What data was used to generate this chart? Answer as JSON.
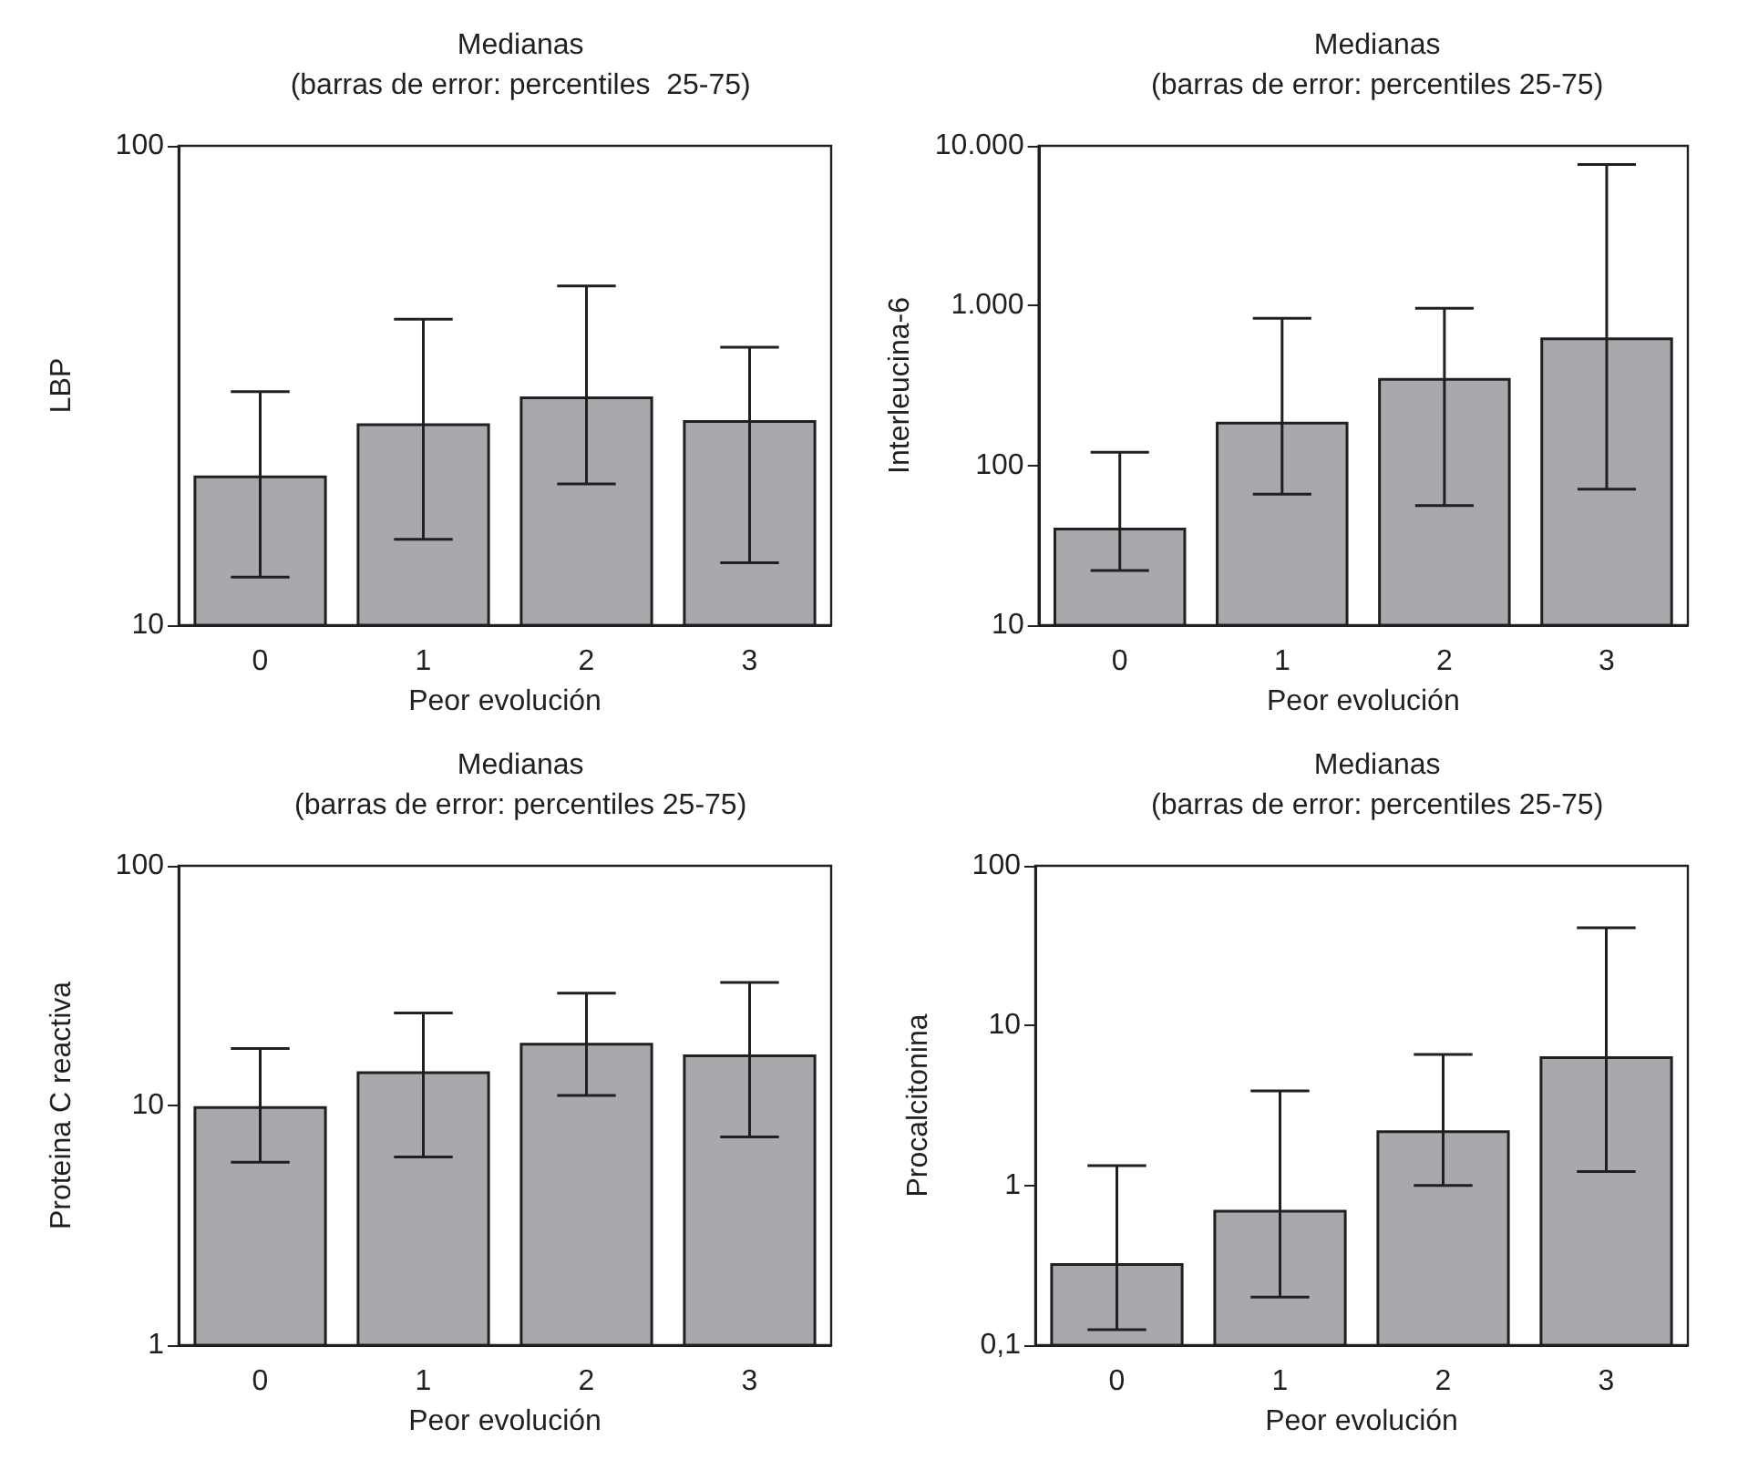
{
  "chart_data": [
    {
      "type": "bar",
      "title": "Medianas",
      "subtitle": "(barras de error: percentiles  25-75)",
      "xlabel": "Peor evolución",
      "ylabel": "LBP",
      "categories": [
        "0",
        "1",
        "2",
        "3"
      ],
      "log": "y",
      "ylim": [
        10,
        100
      ],
      "yticks": [
        10,
        100
      ],
      "color": "#a7a9ac",
      "values": [
        20.4,
        26.2,
        29.8,
        26.6
      ],
      "errors": [
        [
          12.6,
          30.7
        ],
        [
          15.1,
          43.5
        ],
        [
          19.7,
          51
        ],
        [
          13.5,
          38
        ]
      ]
    },
    {
      "type": "bar",
      "title": "Medianas",
      "subtitle": "(barras de error: percentiles 25-75)",
      "xlabel": "Peor evolución",
      "ylabel": "Interleucina-6",
      "categories": [
        "0",
        "1",
        "2",
        "3"
      ],
      "log": "y",
      "ylim": [
        10,
        10000
      ],
      "yticks": [
        10,
        100,
        {
          "value": 1000,
          "label": "1.000"
        },
        {
          "value": 10000,
          "label": "10.000"
        }
      ],
      "color": "#a7a9ac",
      "values": [
        40,
        184,
        346,
        620
      ],
      "errors": [
        [
          22,
          121
        ],
        [
          66,
          834
        ],
        [
          56,
          962
        ],
        [
          71,
          7650
        ]
      ]
    },
    {
      "type": "bar",
      "title": "Medianas",
      "subtitle": "(barras de error: percentiles 25-75)",
      "xlabel": "Peor evolución",
      "ylabel": "Proteina C reactiva",
      "categories": [
        "0",
        "1",
        "2",
        "3"
      ],
      "log": "y",
      "ylim": [
        1,
        100
      ],
      "yticks": [
        1,
        10,
        100
      ],
      "color": "#a7a9ac",
      "values": [
        9.8,
        13.7,
        18,
        16.1
      ],
      "errors": [
        [
          5.8,
          17.3
        ],
        [
          6.1,
          24.3
        ],
        [
          11,
          29.4
        ],
        [
          7.4,
          32.6
        ]
      ]
    },
    {
      "type": "bar",
      "title": "Medianas",
      "subtitle": "(barras de error: percentiles 25-75)",
      "xlabel": "Peor evolución",
      "ylabel": "Procalcitonina",
      "categories": [
        "0",
        "1",
        "2",
        "3"
      ],
      "log": "y",
      "ylim": [
        0.1,
        100
      ],
      "yticks": [
        {
          "value": 0.1,
          "label": "0,1"
        },
        1,
        10,
        100
      ],
      "color": "#a7a9ac",
      "values": [
        0.32,
        0.69,
        2.17,
        6.3
      ],
      "errors": [
        [
          0.125,
          1.33
        ],
        [
          0.2,
          3.9
        ],
        [
          1.0,
          6.6
        ],
        [
          1.22,
          41
        ]
      ]
    }
  ]
}
